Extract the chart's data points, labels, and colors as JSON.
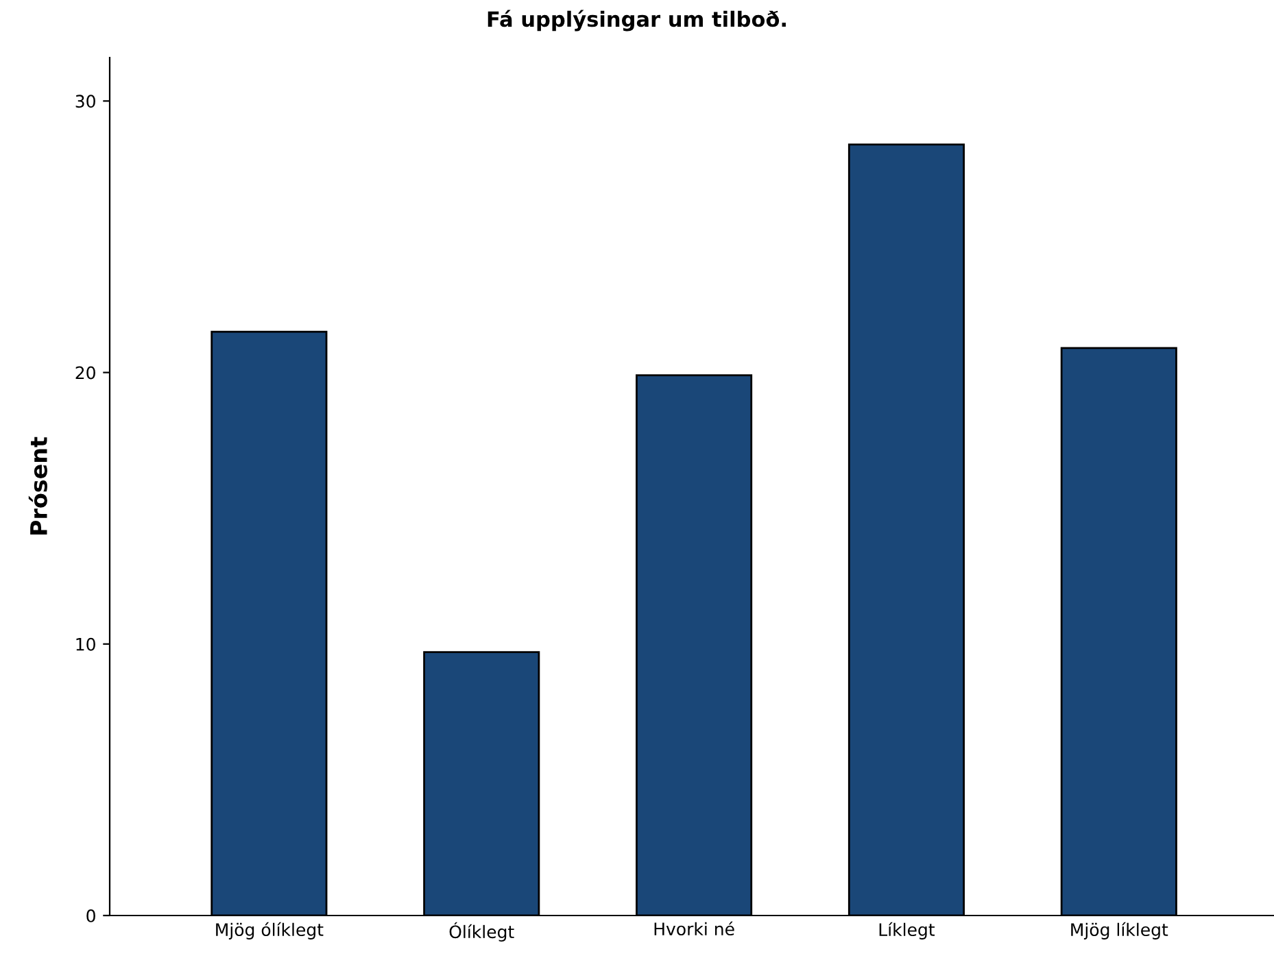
{
  "chart_data": {
    "type": "bar",
    "title": "Fá upplýsingar um tilboð.",
    "ylabel": "Prósent",
    "categories": [
      "Mjög ólíklegt",
      "Ólíklegt",
      "Hvorki né",
      "Líklegt",
      "Mjög líklegt"
    ],
    "values": [
      21.5,
      9.7,
      19.9,
      28.4,
      20.9
    ],
    "color": "#1a4778",
    "ylim": [
      0,
      31.6
    ],
    "yticks": [
      0,
      10,
      20,
      30
    ],
    "grid": false
  }
}
